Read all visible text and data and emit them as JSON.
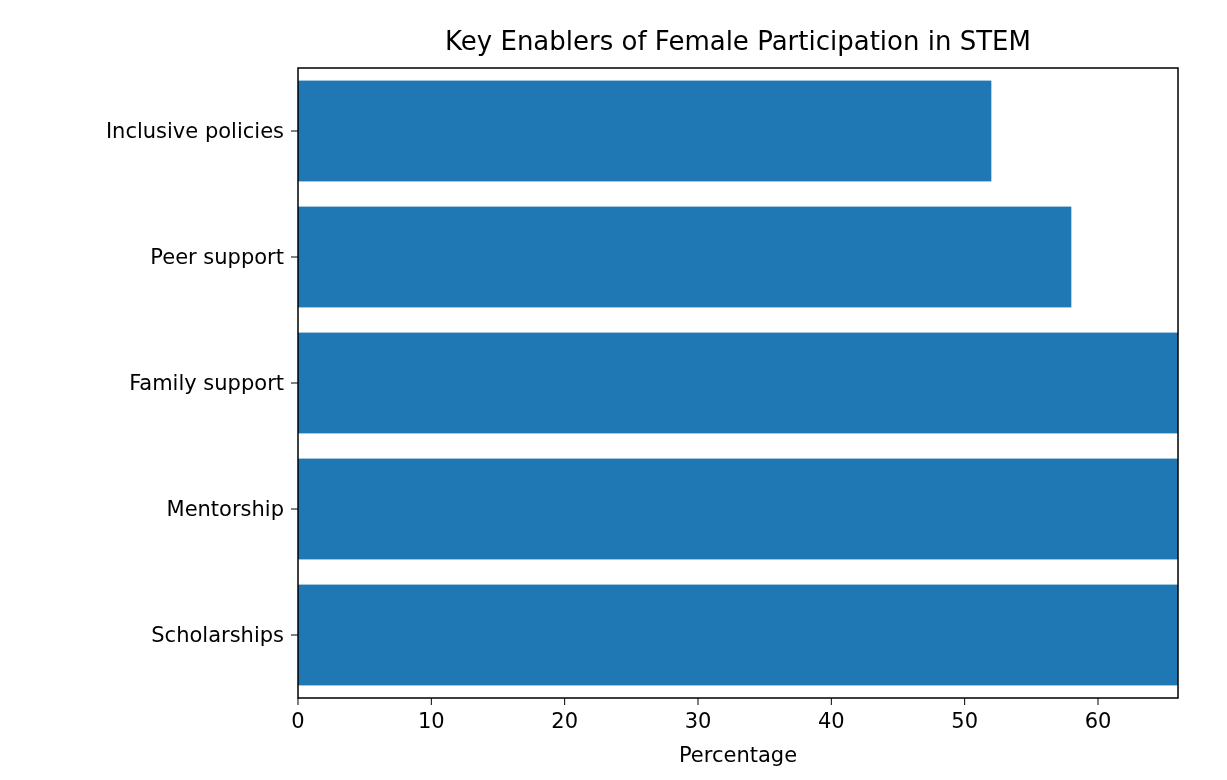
{
  "chart_data": {
    "type": "bar",
    "orientation": "horizontal",
    "title": "Key Enablers of Female Participation in STEM",
    "xlabel": "Percentage",
    "categories": [
      "Inclusive policies",
      "Peer support",
      "Family support",
      "Mentorship",
      "Scholarships"
    ],
    "values": [
      52,
      58,
      66,
      66,
      66
    ],
    "color": "#1f77b4",
    "xlim": [
      0,
      66
    ],
    "xticks": [
      0,
      10,
      20,
      30,
      40,
      50,
      60
    ],
    "grid": false
  }
}
